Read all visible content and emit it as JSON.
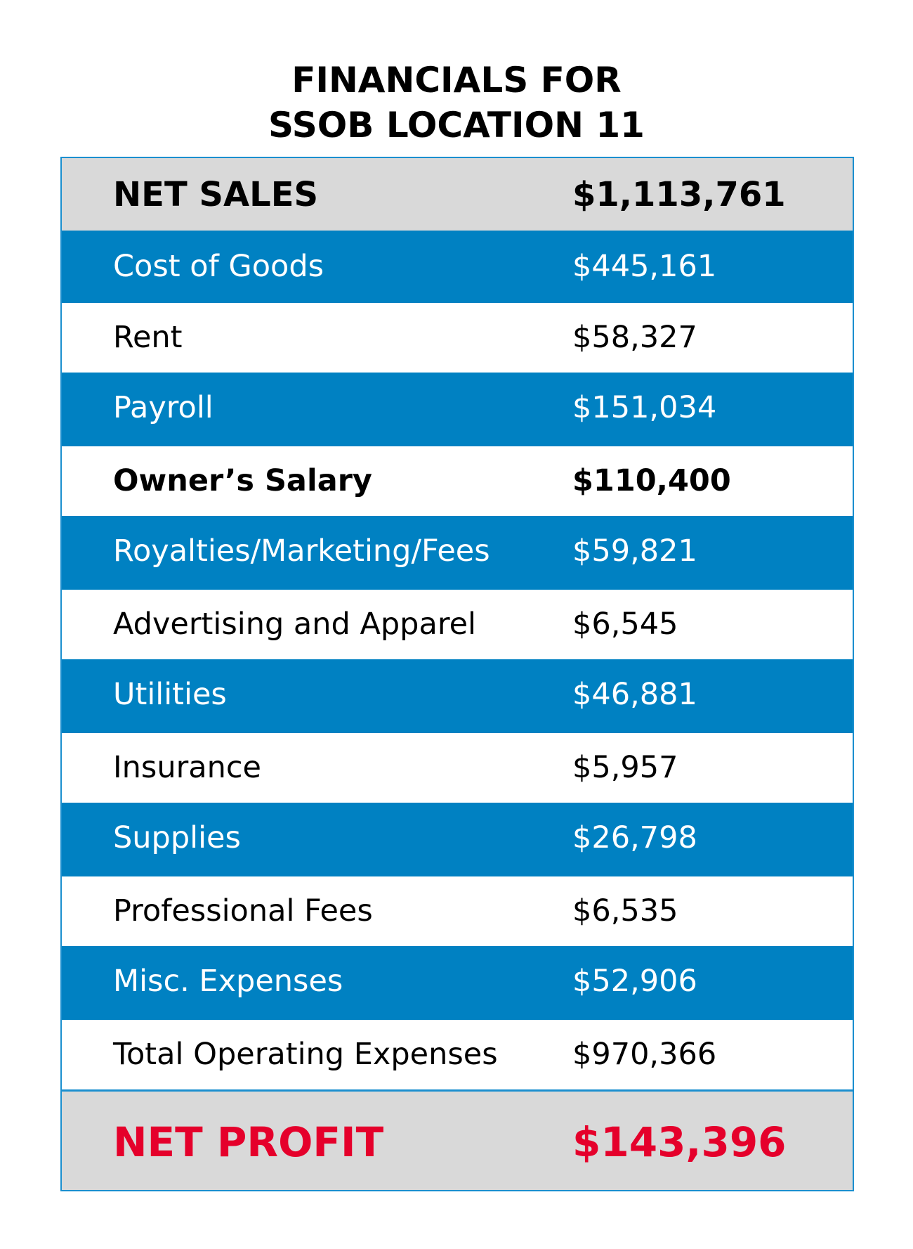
{
  "title": {
    "line1": "FINANCIALS FOR",
    "line2": "SSOB LOCATION 11"
  },
  "net_sales": {
    "label": "NET SALES",
    "value": "$1,113,761"
  },
  "rows": [
    {
      "label": "Cost of Goods",
      "value": "$445,161"
    },
    {
      "label": "Rent",
      "value": "$58,327"
    },
    {
      "label": "Payroll",
      "value": "$151,034"
    },
    {
      "label": "Owner’s Salary",
      "value": "$110,400"
    },
    {
      "label": "Royalties/Marketing/Fees",
      "value": "$59,821"
    },
    {
      "label": "Advertising and Apparel",
      "value": "$6,545"
    },
    {
      "label": "Utilities",
      "value": "$46,881"
    },
    {
      "label": "Insurance",
      "value": "$5,957"
    },
    {
      "label": "Supplies",
      "value": "$26,798"
    },
    {
      "label": "Professional Fees",
      "value": "$6,535"
    },
    {
      "label": "Misc. Expenses",
      "value": "$52,906"
    },
    {
      "label": "Total Operating Expenses",
      "value": "$970,366"
    }
  ],
  "net_profit": {
    "label": "NET PROFIT",
    "value": "$143,396"
  },
  "colors": {
    "row_blue": "#0081c2",
    "header_grey": "#d9d9d9",
    "profit_red": "#e5002b",
    "border_blue": "#1b8fcf"
  }
}
